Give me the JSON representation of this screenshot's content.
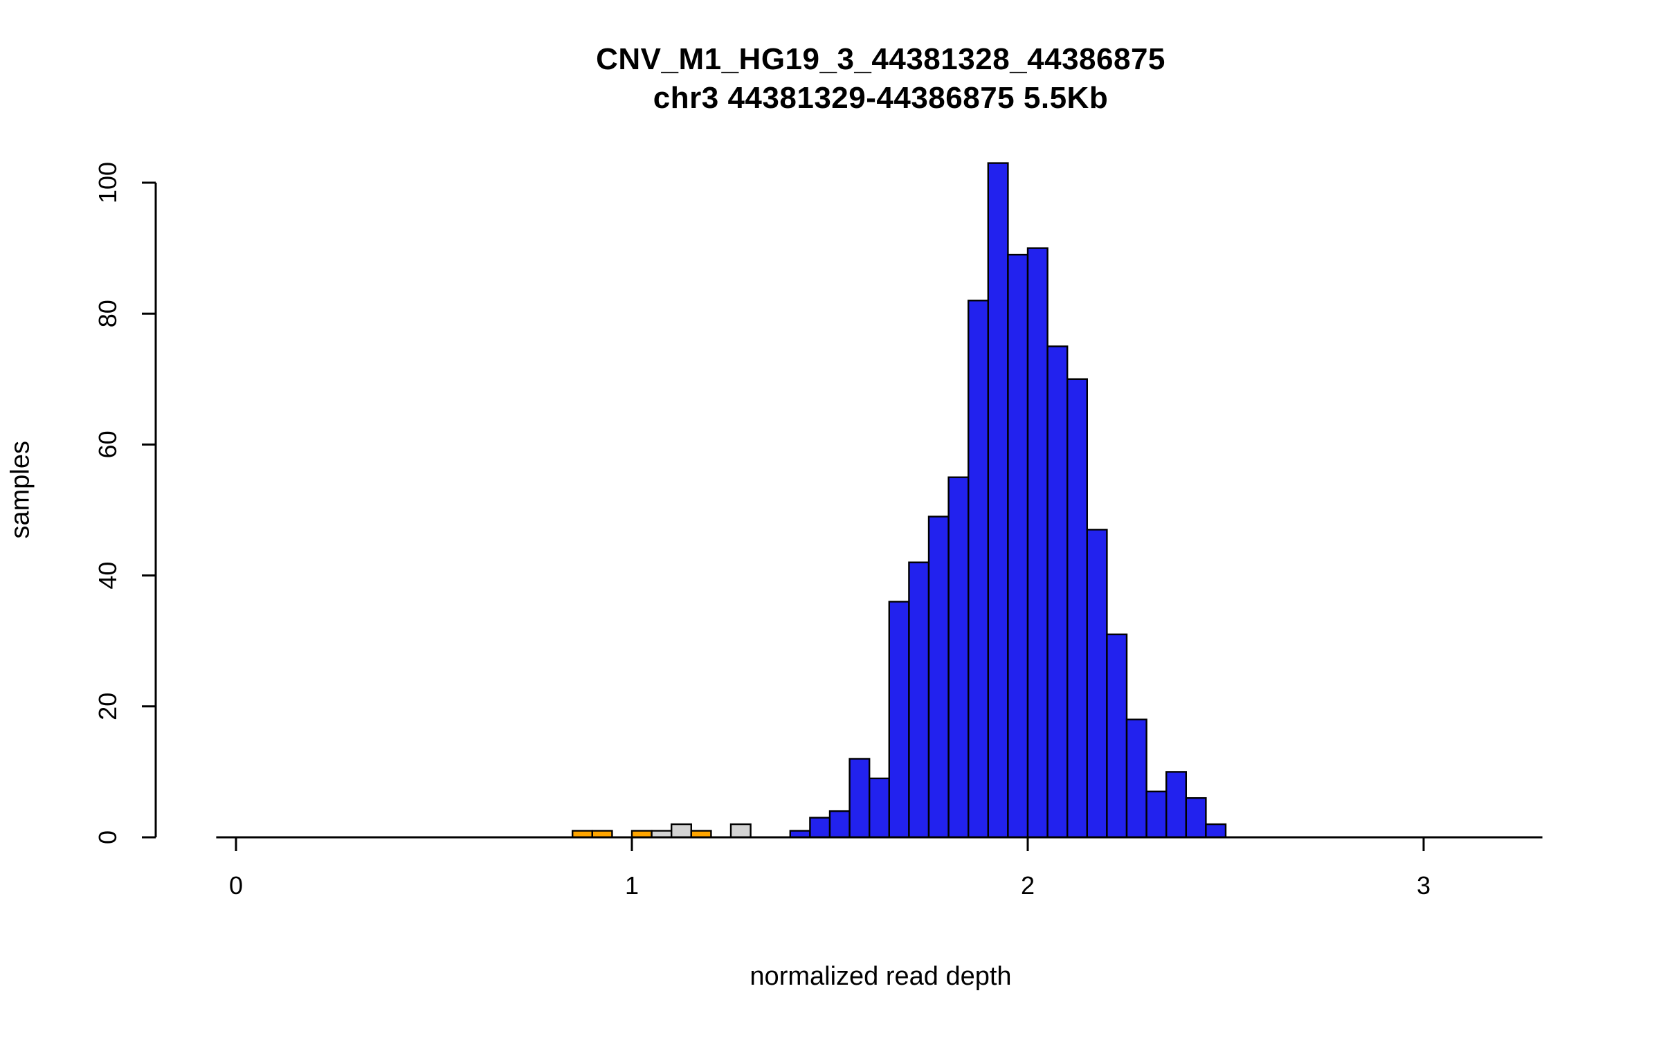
{
  "chart_data": {
    "type": "bar",
    "title": "CNV_M1_HG19_3_44381328_44386875",
    "subtitle": "chr3 44381329-44386875 5.5Kb",
    "xlabel": "normalized read depth",
    "ylabel": "samples",
    "xlim": [
      0,
      3.3
    ],
    "ylim": [
      0,
      103
    ],
    "x_ticks": [
      0,
      1,
      2,
      3
    ],
    "y_ticks": [
      0,
      20,
      40,
      60,
      80,
      100
    ],
    "grid": false,
    "legend": "none",
    "bin_width": 0.05,
    "colors": {
      "normal_diploid": "#2222EE",
      "deletion_flagged": "#FFA500",
      "uncertain": "#D3D3D3",
      "bar_border": "#000000"
    },
    "bars": [
      {
        "x0": 0.85,
        "count": 1,
        "color": "#FFA500"
      },
      {
        "x0": 0.9,
        "count": 1,
        "color": "#FFA500"
      },
      {
        "x0": 1.0,
        "count": 1,
        "color": "#FFA500"
      },
      {
        "x0": 1.05,
        "count": 1,
        "color": "#D3D3D3"
      },
      {
        "x0": 1.1,
        "count": 2,
        "color": "#D3D3D3"
      },
      {
        "x0": 1.15,
        "count": 1,
        "color": "#FFA500"
      },
      {
        "x0": 1.25,
        "count": 2,
        "color": "#D3D3D3"
      },
      {
        "x0": 1.4,
        "count": 1,
        "color": "#2222EE"
      },
      {
        "x0": 1.45,
        "count": 3,
        "color": "#2222EE"
      },
      {
        "x0": 1.5,
        "count": 4,
        "color": "#2222EE"
      },
      {
        "x0": 1.55,
        "count": 12,
        "color": "#2222EE"
      },
      {
        "x0": 1.6,
        "count": 9,
        "color": "#2222EE"
      },
      {
        "x0": 1.65,
        "count": 36,
        "color": "#2222EE"
      },
      {
        "x0": 1.7,
        "count": 42,
        "color": "#2222EE"
      },
      {
        "x0": 1.75,
        "count": 49,
        "color": "#2222EE"
      },
      {
        "x0": 1.8,
        "count": 55,
        "color": "#2222EE"
      },
      {
        "x0": 1.85,
        "count": 82,
        "color": "#2222EE"
      },
      {
        "x0": 1.9,
        "count": 103,
        "color": "#2222EE"
      },
      {
        "x0": 1.95,
        "count": 89,
        "color": "#2222EE"
      },
      {
        "x0": 2.0,
        "count": 90,
        "color": "#2222EE"
      },
      {
        "x0": 2.05,
        "count": 75,
        "color": "#2222EE"
      },
      {
        "x0": 2.1,
        "count": 70,
        "color": "#2222EE"
      },
      {
        "x0": 2.15,
        "count": 47,
        "color": "#2222EE"
      },
      {
        "x0": 2.2,
        "count": 31,
        "color": "#2222EE"
      },
      {
        "x0": 2.25,
        "count": 18,
        "color": "#2222EE"
      },
      {
        "x0": 2.3,
        "count": 7,
        "color": "#2222EE"
      },
      {
        "x0": 2.35,
        "count": 10,
        "color": "#2222EE"
      },
      {
        "x0": 2.4,
        "count": 6,
        "color": "#2222EE"
      },
      {
        "x0": 2.45,
        "count": 2,
        "color": "#2222EE"
      }
    ]
  }
}
